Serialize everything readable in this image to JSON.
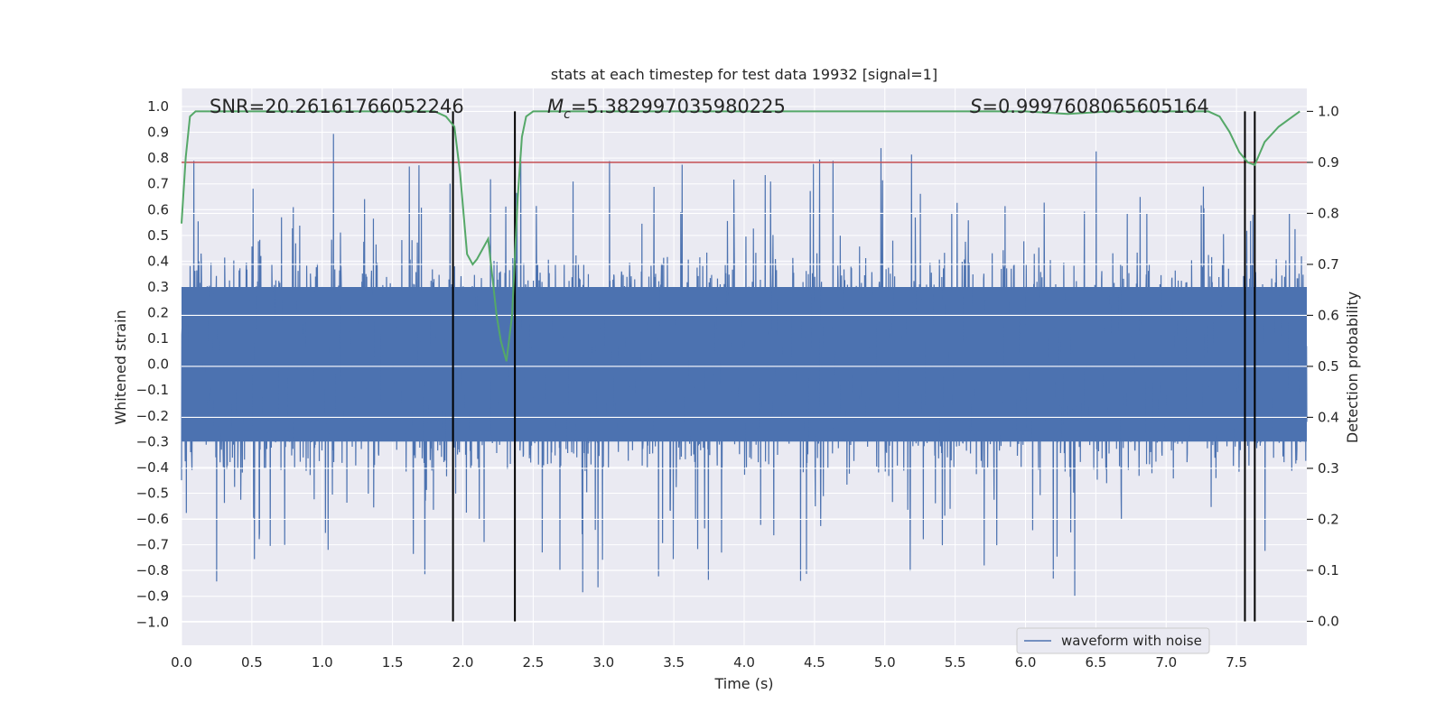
{
  "chart_data": {
    "type": "line",
    "title": "stats at each timestep for test data 19932 [signal=1]",
    "xlabel": "Time (s)",
    "ylabel": "Whitened strain",
    "y2label": "Detection probability",
    "xlim": [
      0.0,
      8.0
    ],
    "ylim": [
      -1.09,
      1.07
    ],
    "y2lim": [
      -0.047,
      1.045
    ],
    "xticks": [
      "0.0",
      "0.5",
      "1.0",
      "1.5",
      "2.0",
      "2.5",
      "3.0",
      "3.5",
      "4.0",
      "4.5",
      "5.0",
      "5.5",
      "6.0",
      "6.5",
      "7.0",
      "7.5"
    ],
    "yticks": [
      "1.0",
      "0.9",
      "0.8",
      "0.7",
      "0.6",
      "0.5",
      "0.4",
      "0.3",
      "0.2",
      "0.1",
      "0.0",
      "−0.1",
      "−0.2",
      "−0.3",
      "−0.4",
      "−0.5",
      "−0.6",
      "−0.7",
      "−0.8",
      "−0.9",
      "−1.0"
    ],
    "y2ticks": [
      "1.0",
      "0.9",
      "0.8",
      "0.7",
      "0.6",
      "0.5",
      "0.4",
      "0.3",
      "0.2",
      "0.1",
      "0.0"
    ],
    "annotations": {
      "snr": "SNR=20.26161766052246",
      "mc_sym": "M",
      "mc_sub": "c",
      "mc_val": "=5.382997035980225",
      "s_sym": "S",
      "s_val": "=0.9997608065605164"
    },
    "threshold": {
      "y2": 0.9,
      "color": "#c44e52"
    },
    "vlines_x": [
      1.93,
      2.37,
      7.56,
      7.63
    ],
    "legend": {
      "label": "waveform with noise",
      "location": "lower-right"
    },
    "waveform": {
      "name": "waveform with noise",
      "color": "#4c72b0",
      "time_range": [
        0.0,
        8.0
      ],
      "typical_envelope": [
        -0.45,
        0.45
      ],
      "peaks_max": 0.97,
      "peaks_min": -1.0
    },
    "probability": {
      "name": "detection probability",
      "color": "#55a868",
      "x": [
        0.0,
        0.03,
        0.06,
        0.1,
        0.15,
        0.5,
        1.0,
        1.5,
        1.8,
        1.88,
        1.94,
        1.98,
        2.03,
        2.07,
        2.1,
        2.14,
        2.18,
        2.2,
        2.24,
        2.27,
        2.31,
        2.35,
        2.39,
        2.42,
        2.45,
        2.5,
        3.0,
        4.0,
        5.0,
        6.0,
        6.3,
        6.6,
        7.0,
        7.3,
        7.38,
        7.45,
        7.52,
        7.58,
        7.63,
        7.7,
        7.8,
        7.9,
        7.95
      ],
      "y": [
        0.78,
        0.91,
        0.99,
        1.0,
        1.0,
        1.0,
        1.0,
        1.0,
        1.0,
        0.99,
        0.97,
        0.88,
        0.72,
        0.7,
        0.71,
        0.73,
        0.75,
        0.7,
        0.6,
        0.55,
        0.51,
        0.6,
        0.83,
        0.95,
        0.99,
        1.0,
        1.0,
        1.0,
        1.0,
        1.0,
        0.995,
        1.0,
        1.0,
        1.0,
        0.99,
        0.96,
        0.92,
        0.9,
        0.895,
        0.94,
        0.97,
        0.99,
        1.0
      ]
    }
  }
}
